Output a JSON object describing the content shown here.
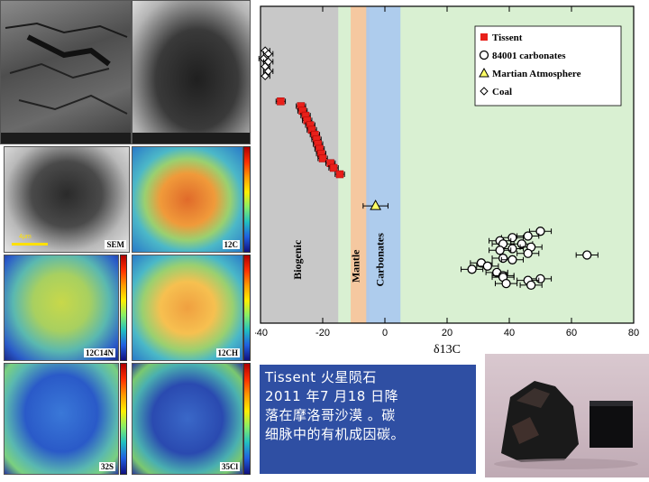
{
  "panels": {
    "sem_label": "SEM",
    "c12_label": "12C",
    "c12n14_label": "12C14N",
    "c12h_label": "12CH",
    "s32_label": "32S",
    "cl35_label": "35Cl",
    "scale_label": "4μm"
  },
  "caption": {
    "line1": "Tissent 火星陨石",
    "line2": "2011 年7 月18 日降",
    "line3": "落在摩洛哥沙漠 。碳",
    "line4": "细脉中的有机成因碳。"
  },
  "colors": {
    "biogenic_band": "#c8c8c8",
    "mantle_band": "#f5c8a0",
    "carbonates_band": "#a8c8f0",
    "plot_background": "#d9f0d2",
    "tissent": "#e8201a",
    "caption_bg": "#2f4fa3"
  },
  "chart_data": {
    "type": "scatter",
    "xlabel": "δ13C",
    "xlim": [
      -40,
      80
    ],
    "xticks": [
      -40,
      -20,
      0,
      20,
      40,
      60,
      80
    ],
    "grid": false,
    "legend_position": "top-right",
    "bands": [
      {
        "label": "Biogenic",
        "from": -40,
        "to": -15
      },
      {
        "label": "Mantle",
        "from": -11,
        "to": -5
      },
      {
        "label": "Carbonates",
        "from": -6,
        "to": 5
      }
    ],
    "series": [
      {
        "name": "Tissent",
        "marker": "filled-square",
        "points": [
          {
            "x": -33.5,
            "y": 30.0
          },
          {
            "x": -27.0,
            "y": 31.5
          },
          {
            "x": -26.5,
            "y": 33.0
          },
          {
            "x": -25.5,
            "y": 34.5
          },
          {
            "x": -25.0,
            "y": 36.0
          },
          {
            "x": -24.0,
            "y": 37.5
          },
          {
            "x": -23.5,
            "y": 39.0
          },
          {
            "x": -22.5,
            "y": 40.5
          },
          {
            "x": -22.0,
            "y": 42.0
          },
          {
            "x": -21.5,
            "y": 43.5
          },
          {
            "x": -21.0,
            "y": 45.0
          },
          {
            "x": -20.5,
            "y": 46.5
          },
          {
            "x": -20.0,
            "y": 48.0
          },
          {
            "x": -17.5,
            "y": 49.5
          },
          {
            "x": -16.5,
            "y": 51.0
          },
          {
            "x": -14.5,
            "y": 53.0
          }
        ]
      },
      {
        "name": "84001 carbonates",
        "marker": "open-circle",
        "points": [
          {
            "x": 50,
            "y": 71
          },
          {
            "x": 46,
            "y": 72.5
          },
          {
            "x": 41,
            "y": 73
          },
          {
            "x": 37,
            "y": 74
          },
          {
            "x": 38,
            "y": 75
          },
          {
            "x": 44,
            "y": 75
          },
          {
            "x": 47,
            "y": 76
          },
          {
            "x": 41,
            "y": 76.5
          },
          {
            "x": 37,
            "y": 77
          },
          {
            "x": 46,
            "y": 78
          },
          {
            "x": 65,
            "y": 78.5
          },
          {
            "x": 38,
            "y": 79.5
          },
          {
            "x": 41,
            "y": 80
          },
          {
            "x": 31,
            "y": 81
          },
          {
            "x": 33,
            "y": 82
          },
          {
            "x": 28,
            "y": 83
          },
          {
            "x": 36,
            "y": 84
          },
          {
            "x": 38,
            "y": 85
          },
          {
            "x": 38,
            "y": 85.5
          },
          {
            "x": 50,
            "y": 86
          },
          {
            "x": 46,
            "y": 86.5
          },
          {
            "x": 39,
            "y": 87.5
          },
          {
            "x": 47,
            "y": 88
          }
        ]
      },
      {
        "name": "Martian Atmosphere",
        "marker": "open-triangle",
        "points": [
          {
            "x": -3,
            "y": 63
          }
        ]
      },
      {
        "name": "Coal",
        "marker": "open-diamond",
        "points": [
          {
            "x": -38.5,
            "y": 14
          },
          {
            "x": -37.5,
            "y": 15
          },
          {
            "x": -39,
            "y": 16.5
          },
          {
            "x": -37.5,
            "y": 17.5
          },
          {
            "x": -38.5,
            "y": 19
          },
          {
            "x": -37.5,
            "y": 20.5
          },
          {
            "x": -38.5,
            "y": 22
          }
        ]
      }
    ]
  }
}
